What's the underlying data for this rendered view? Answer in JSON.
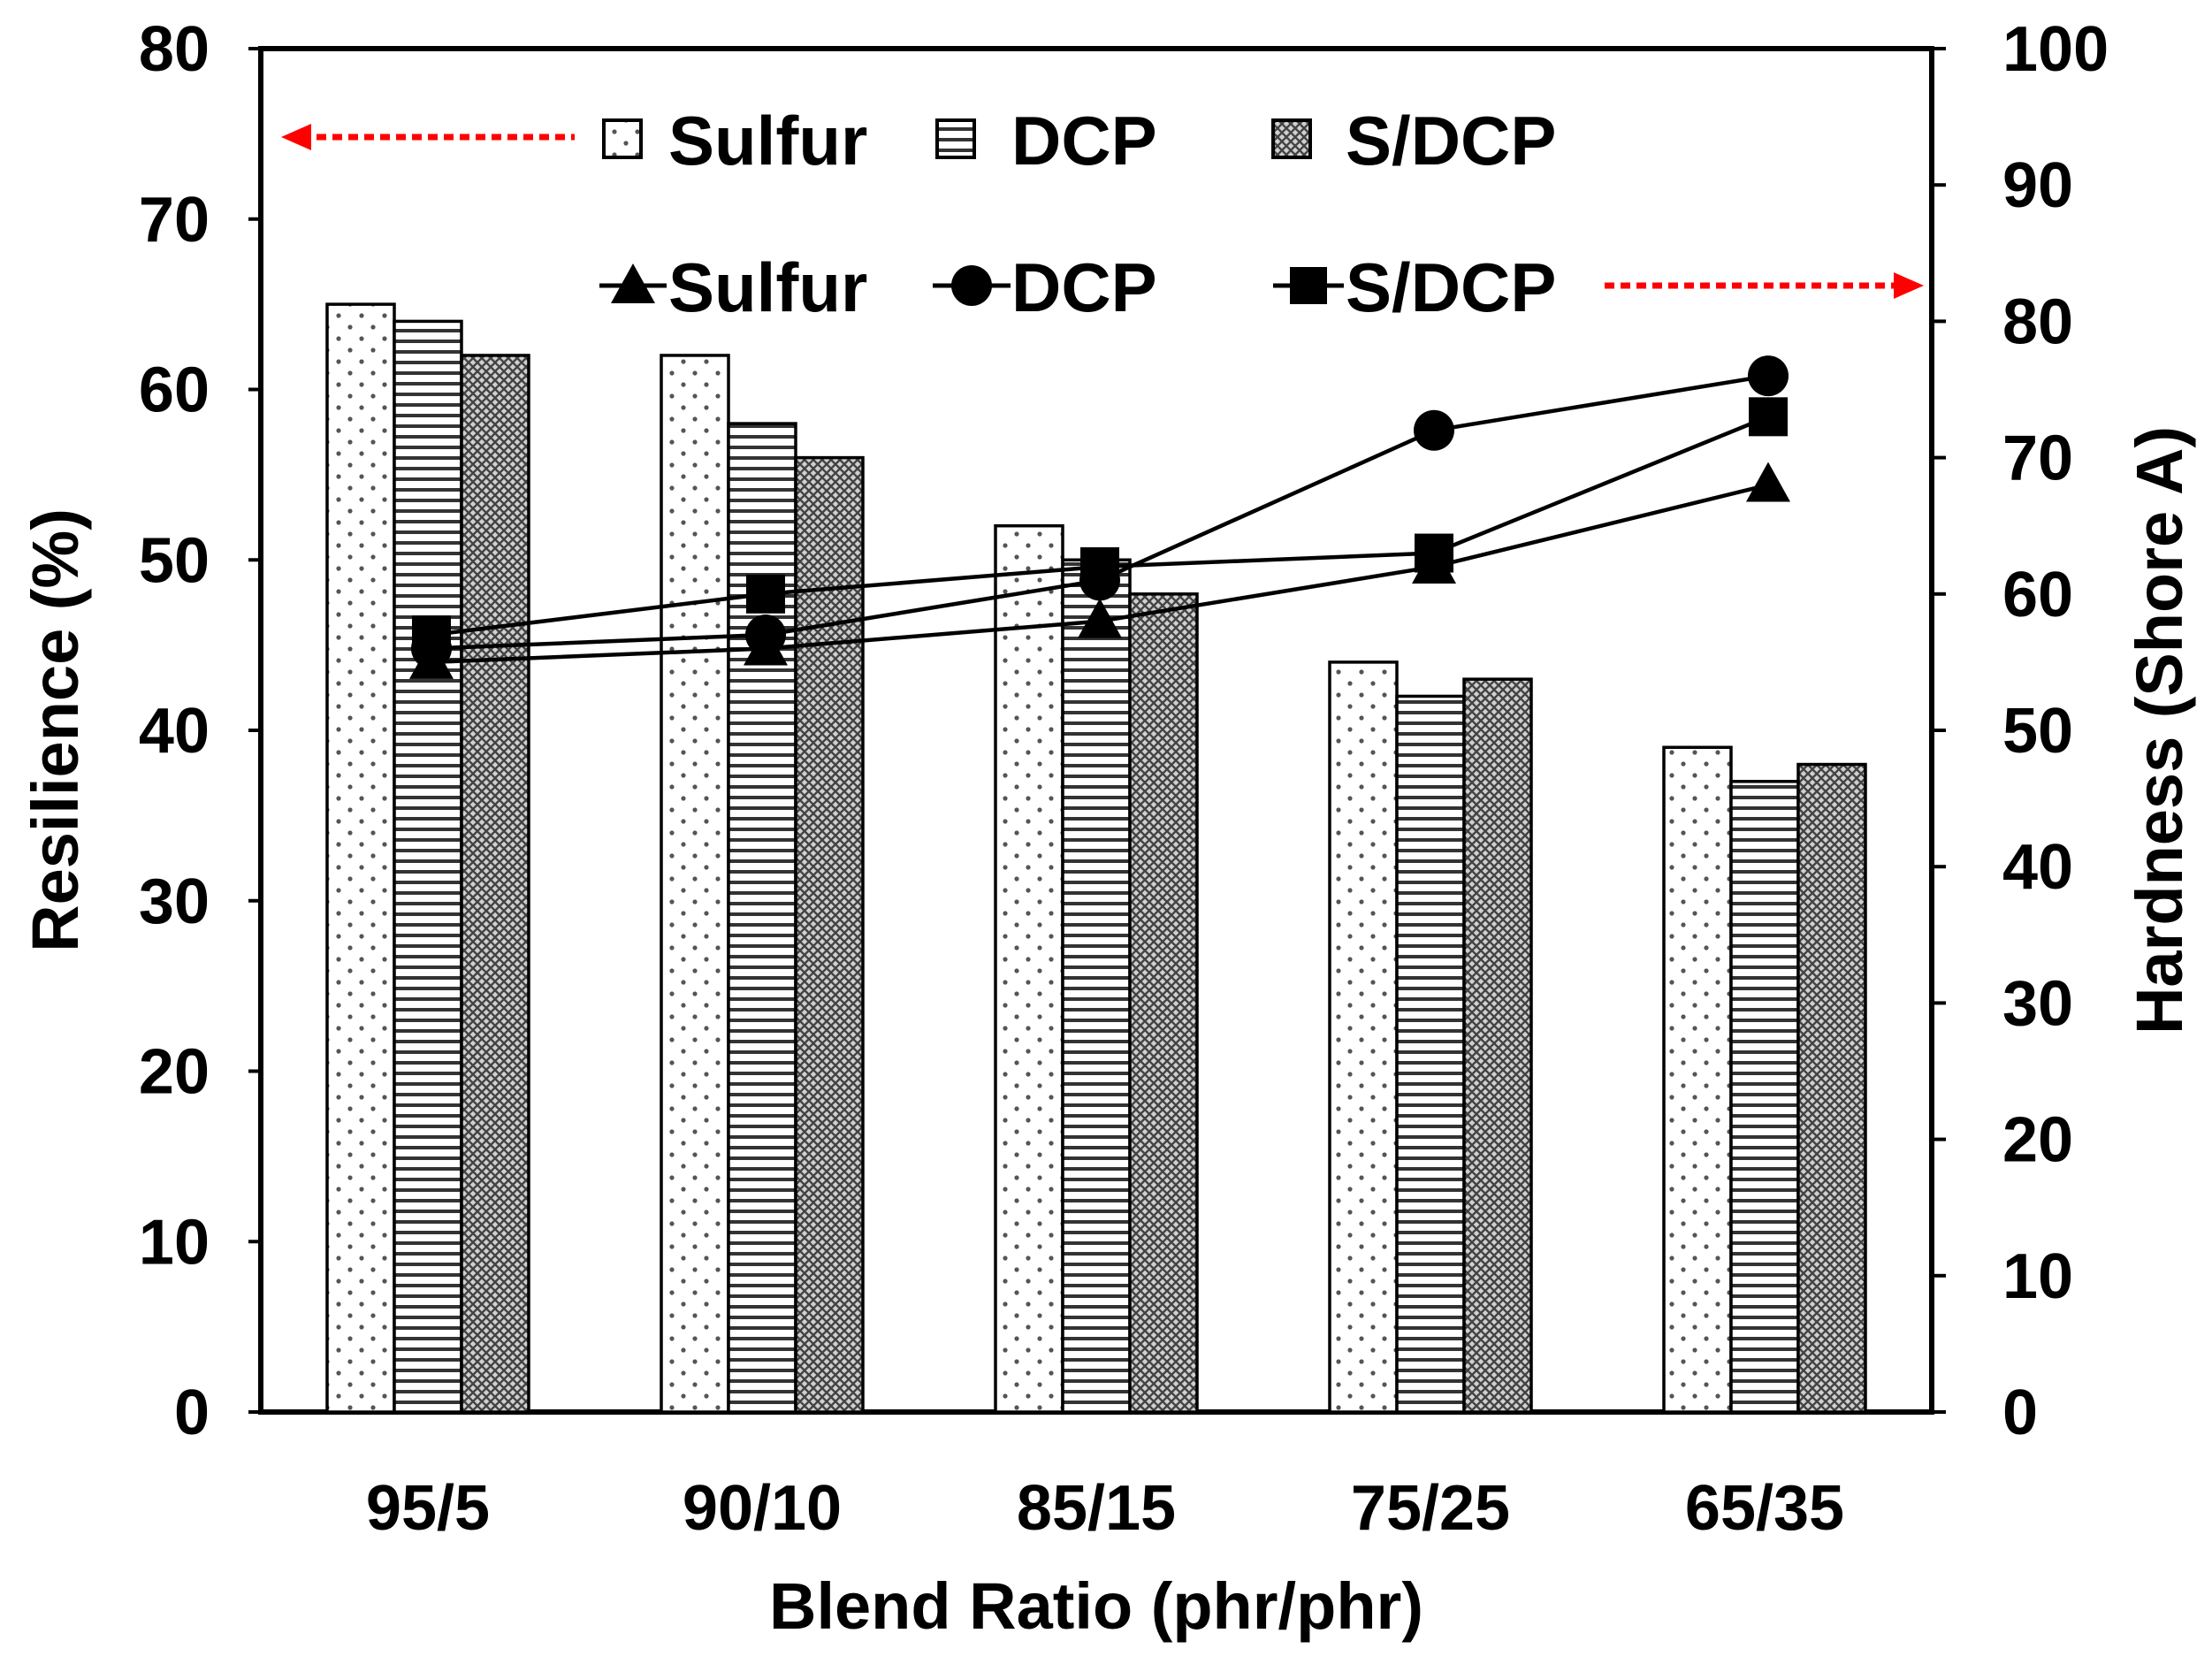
{
  "chart_data": {
    "type": "bar+line",
    "categories": [
      "95/5",
      "90/10",
      "85/15",
      "75/25",
      "65/35"
    ],
    "xlabel": "Blend Ratio (phr/phr)",
    "ylabel_left": "Resilience (%)",
    "ylabel_right": "Hardness (Shore A)",
    "ylim_left": [
      0,
      80
    ],
    "ylim_right": [
      0,
      100
    ],
    "yticks_left": [
      "0",
      "10",
      "20",
      "30",
      "40",
      "50",
      "60",
      "70",
      "80"
    ],
    "yticks_right": [
      "0",
      "10",
      "20",
      "30",
      "40",
      "50",
      "60",
      "70",
      "80",
      "90",
      "100"
    ],
    "bar_series": [
      {
        "name": "Sulfur",
        "pattern": "dots",
        "values": [
          65,
          62,
          52,
          44,
          39
        ]
      },
      {
        "name": "DCP",
        "pattern": "horizontal-lines",
        "values": [
          64,
          58,
          50,
          42,
          37
        ]
      },
      {
        "name": "S/DCP",
        "pattern": "crosshatch",
        "values": [
          62,
          56,
          48,
          43,
          38
        ]
      }
    ],
    "line_series": [
      {
        "name": "Sulfur",
        "marker": "triangle",
        "values": [
          55,
          56,
          58,
          62,
          68
        ]
      },
      {
        "name": "DCP",
        "marker": "circle",
        "values": [
          56,
          57,
          61,
          72,
          76
        ]
      },
      {
        "name": "S/DCP",
        "marker": "square",
        "values": [
          57,
          60,
          62,
          63,
          73
        ]
      }
    ],
    "legend_bars_axis": "left",
    "legend_lines_axis": "right",
    "arrow_color": "#ff0000"
  }
}
